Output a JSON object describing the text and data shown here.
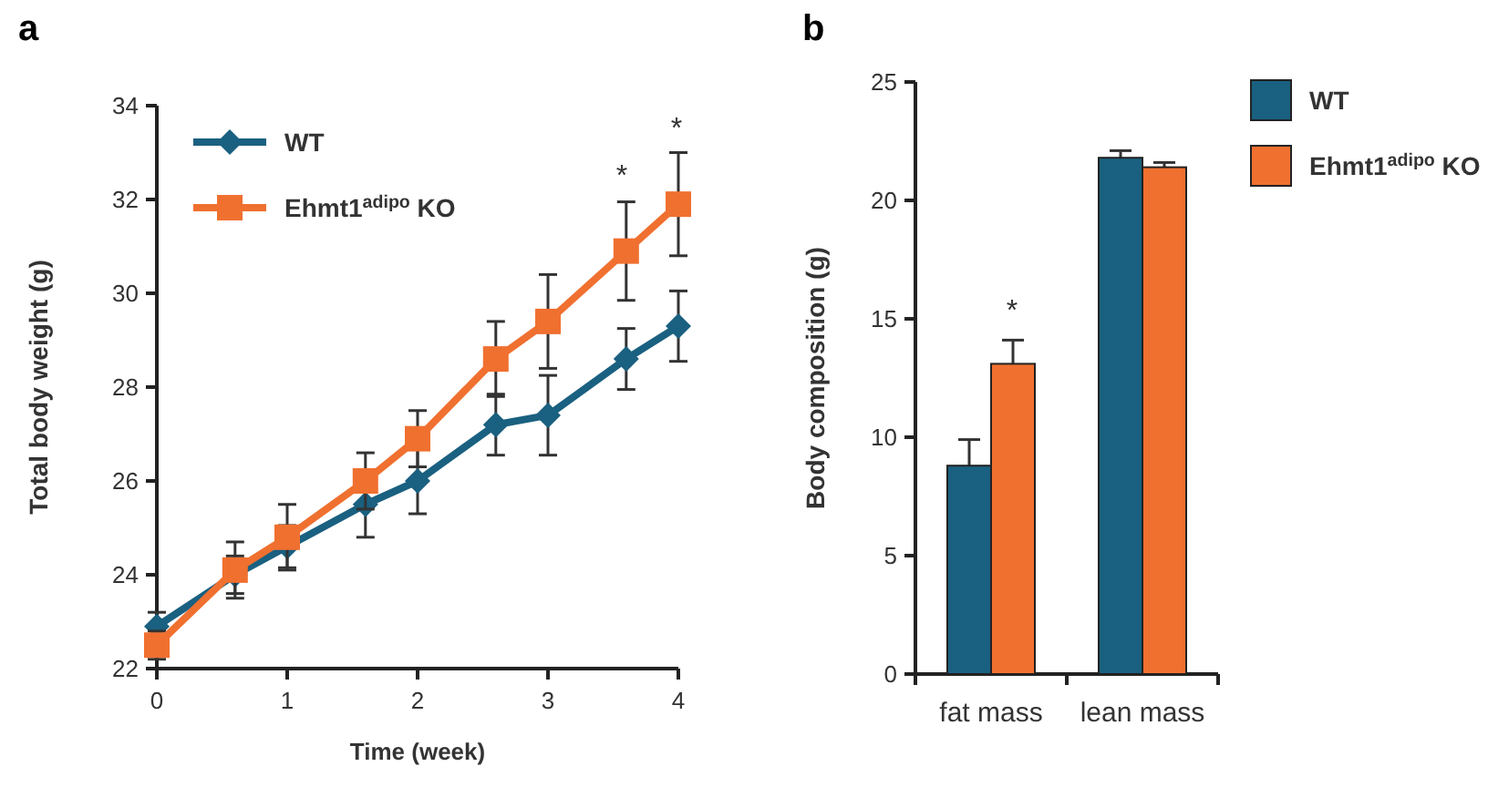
{
  "chart_data": [
    {
      "type": "line",
      "title": "a",
      "xlabel": "Time (week)",
      "ylabel": "Total body weight (g)",
      "x": [
        0,
        0.6,
        1,
        1.6,
        2,
        2.6,
        3,
        3.6,
        4
      ],
      "series": [
        {
          "name": "WT",
          "color": "#1a6080",
          "marker": "diamond",
          "values": [
            22.9,
            24.0,
            24.6,
            25.5,
            26.0,
            27.2,
            27.4,
            28.6,
            29.3
          ],
          "errors": [
            0.3,
            0.4,
            0.45,
            0.7,
            0.7,
            0.65,
            0.85,
            0.65,
            0.75
          ]
        },
        {
          "name": "Ehmt1$^{adipo}$ KO",
          "color": "#f07030",
          "marker": "square",
          "values": [
            22.5,
            24.1,
            24.8,
            26.0,
            26.9,
            28.6,
            29.4,
            30.9,
            31.9
          ],
          "errors": [
            0.3,
            0.6,
            0.7,
            0.6,
            0.6,
            0.8,
            1.0,
            1.05,
            1.1
          ]
        }
      ],
      "xlim": [
        0,
        4
      ],
      "xticks": [
        0,
        1,
        2,
        3,
        4
      ],
      "ylim": [
        22,
        34
      ],
      "yticks": [
        22,
        24,
        26,
        28,
        30,
        32,
        34
      ],
      "legend": "top left",
      "annotations": [
        "*",
        "*"
      ]
    },
    {
      "type": "bar",
      "title": "b",
      "ylabel": "Body composition (g)",
      "categories": [
        "fat mass",
        "lean mass"
      ],
      "series": [
        {
          "name": "WT",
          "color": "#1a6080",
          "values": [
            8.8,
            21.8
          ],
          "errors": [
            1.1,
            0.3
          ]
        },
        {
          "name": "Ehmt1$^{adipo}$ KO",
          "color": "#f07030",
          "values": [
            13.1,
            21.4
          ],
          "errors": [
            1.0,
            0.2
          ]
        }
      ],
      "ylim": [
        0,
        25
      ],
      "yticks": [
        0,
        5,
        10,
        15,
        20,
        25
      ],
      "legend": "right",
      "annotations": [
        "*"
      ]
    }
  ]
}
